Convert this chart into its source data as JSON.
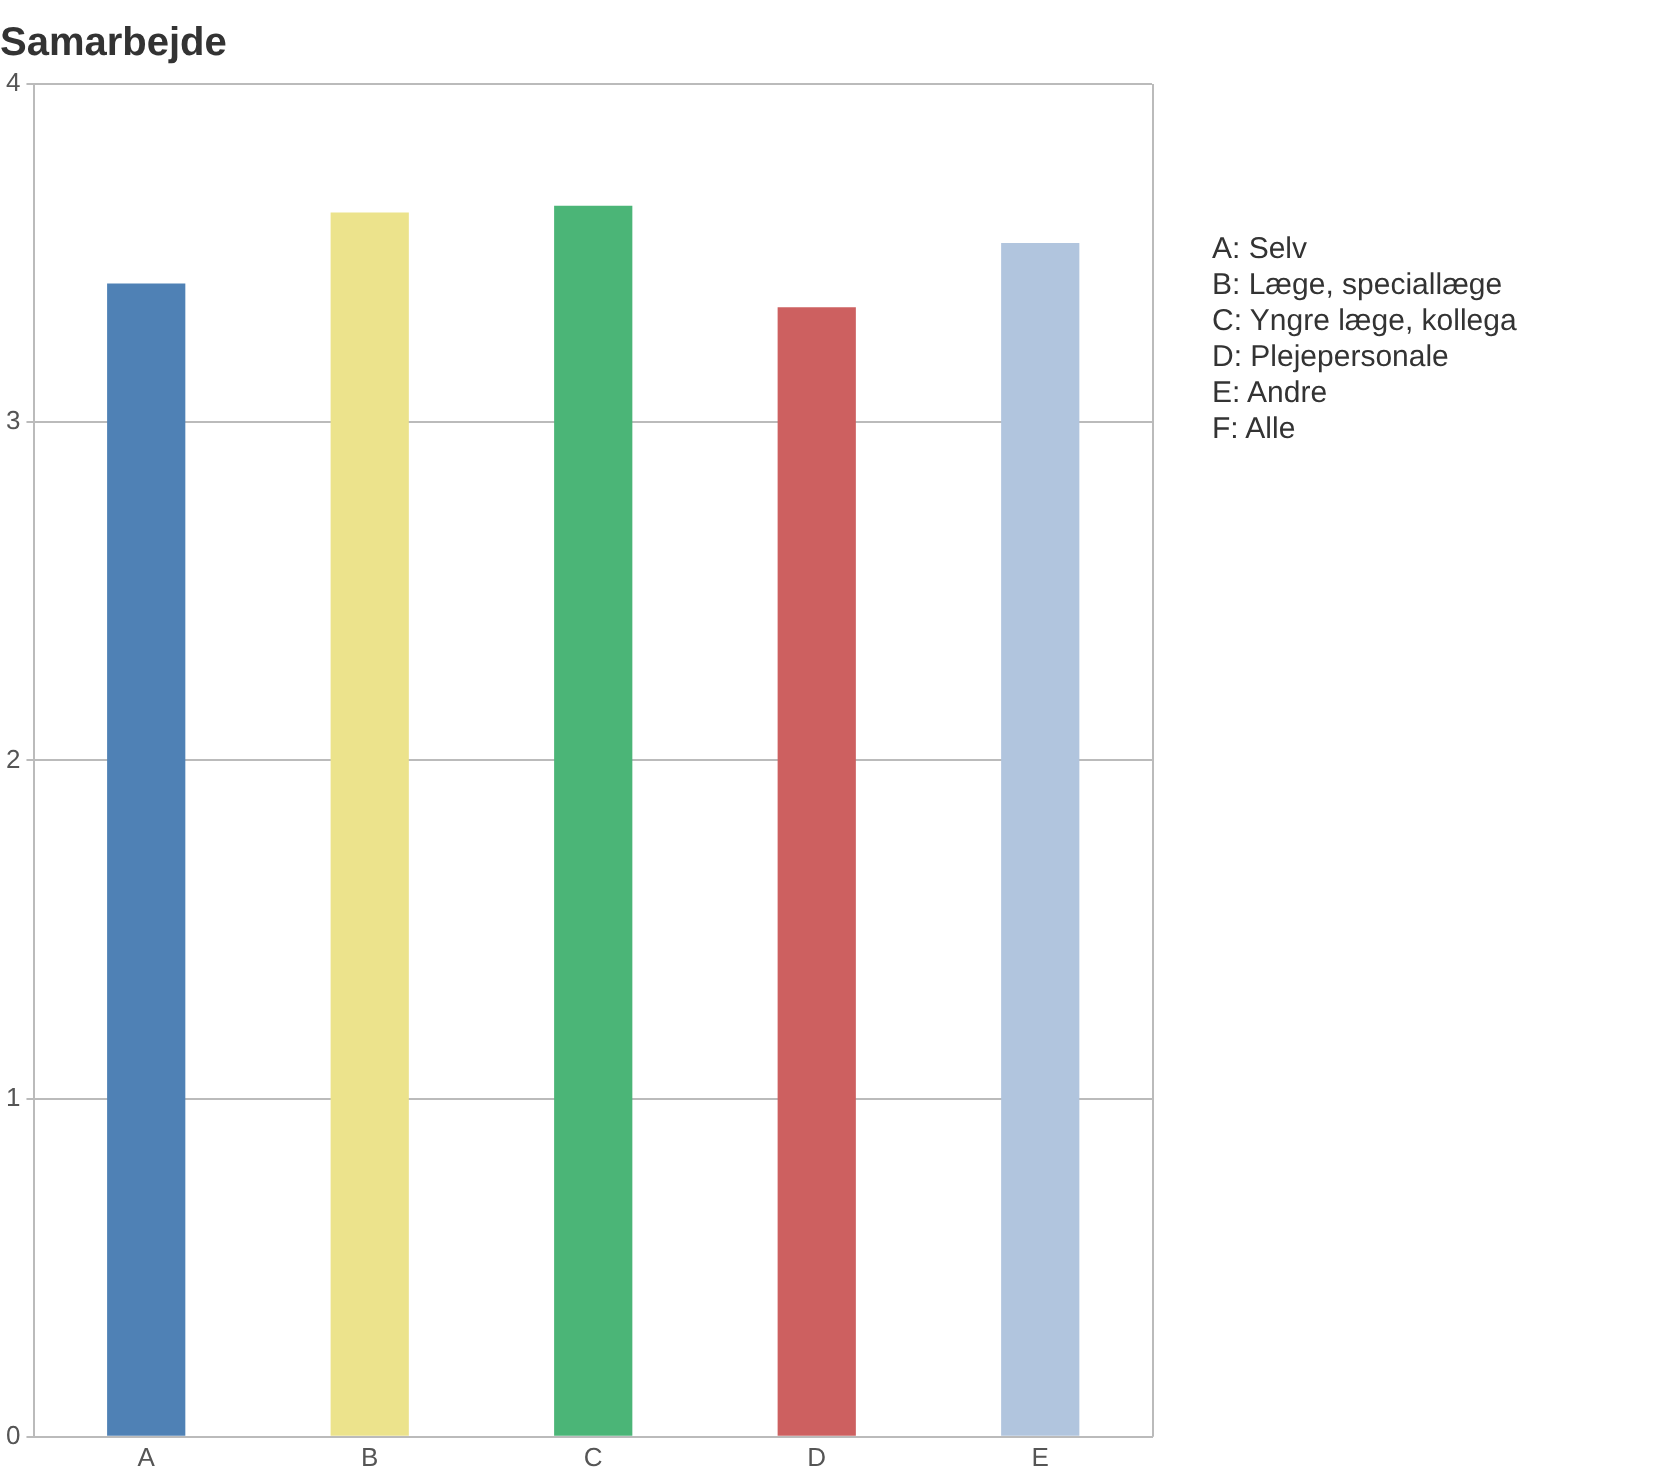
{
  "chart_data": {
    "type": "bar",
    "title": "Samarbejde",
    "categories": [
      "A",
      "B",
      "C",
      "D",
      "E"
    ],
    "values": [
      3.41,
      3.62,
      3.64,
      3.34,
      3.53
    ],
    "colors": [
      "#4f81b5",
      "#ece38c",
      "#4bb577",
      "#cd6060",
      "#b1c5de"
    ],
    "ylim": [
      0,
      4
    ],
    "yticks": [
      0,
      1,
      2,
      3,
      4
    ],
    "grid": "y",
    "annotations": [
      "A: Selv",
      "B: Læge, speciallæge",
      "C: Yngre læge, kollega",
      "D: Plejepersonale",
      "E: Andre",
      "F: Alle"
    ]
  }
}
